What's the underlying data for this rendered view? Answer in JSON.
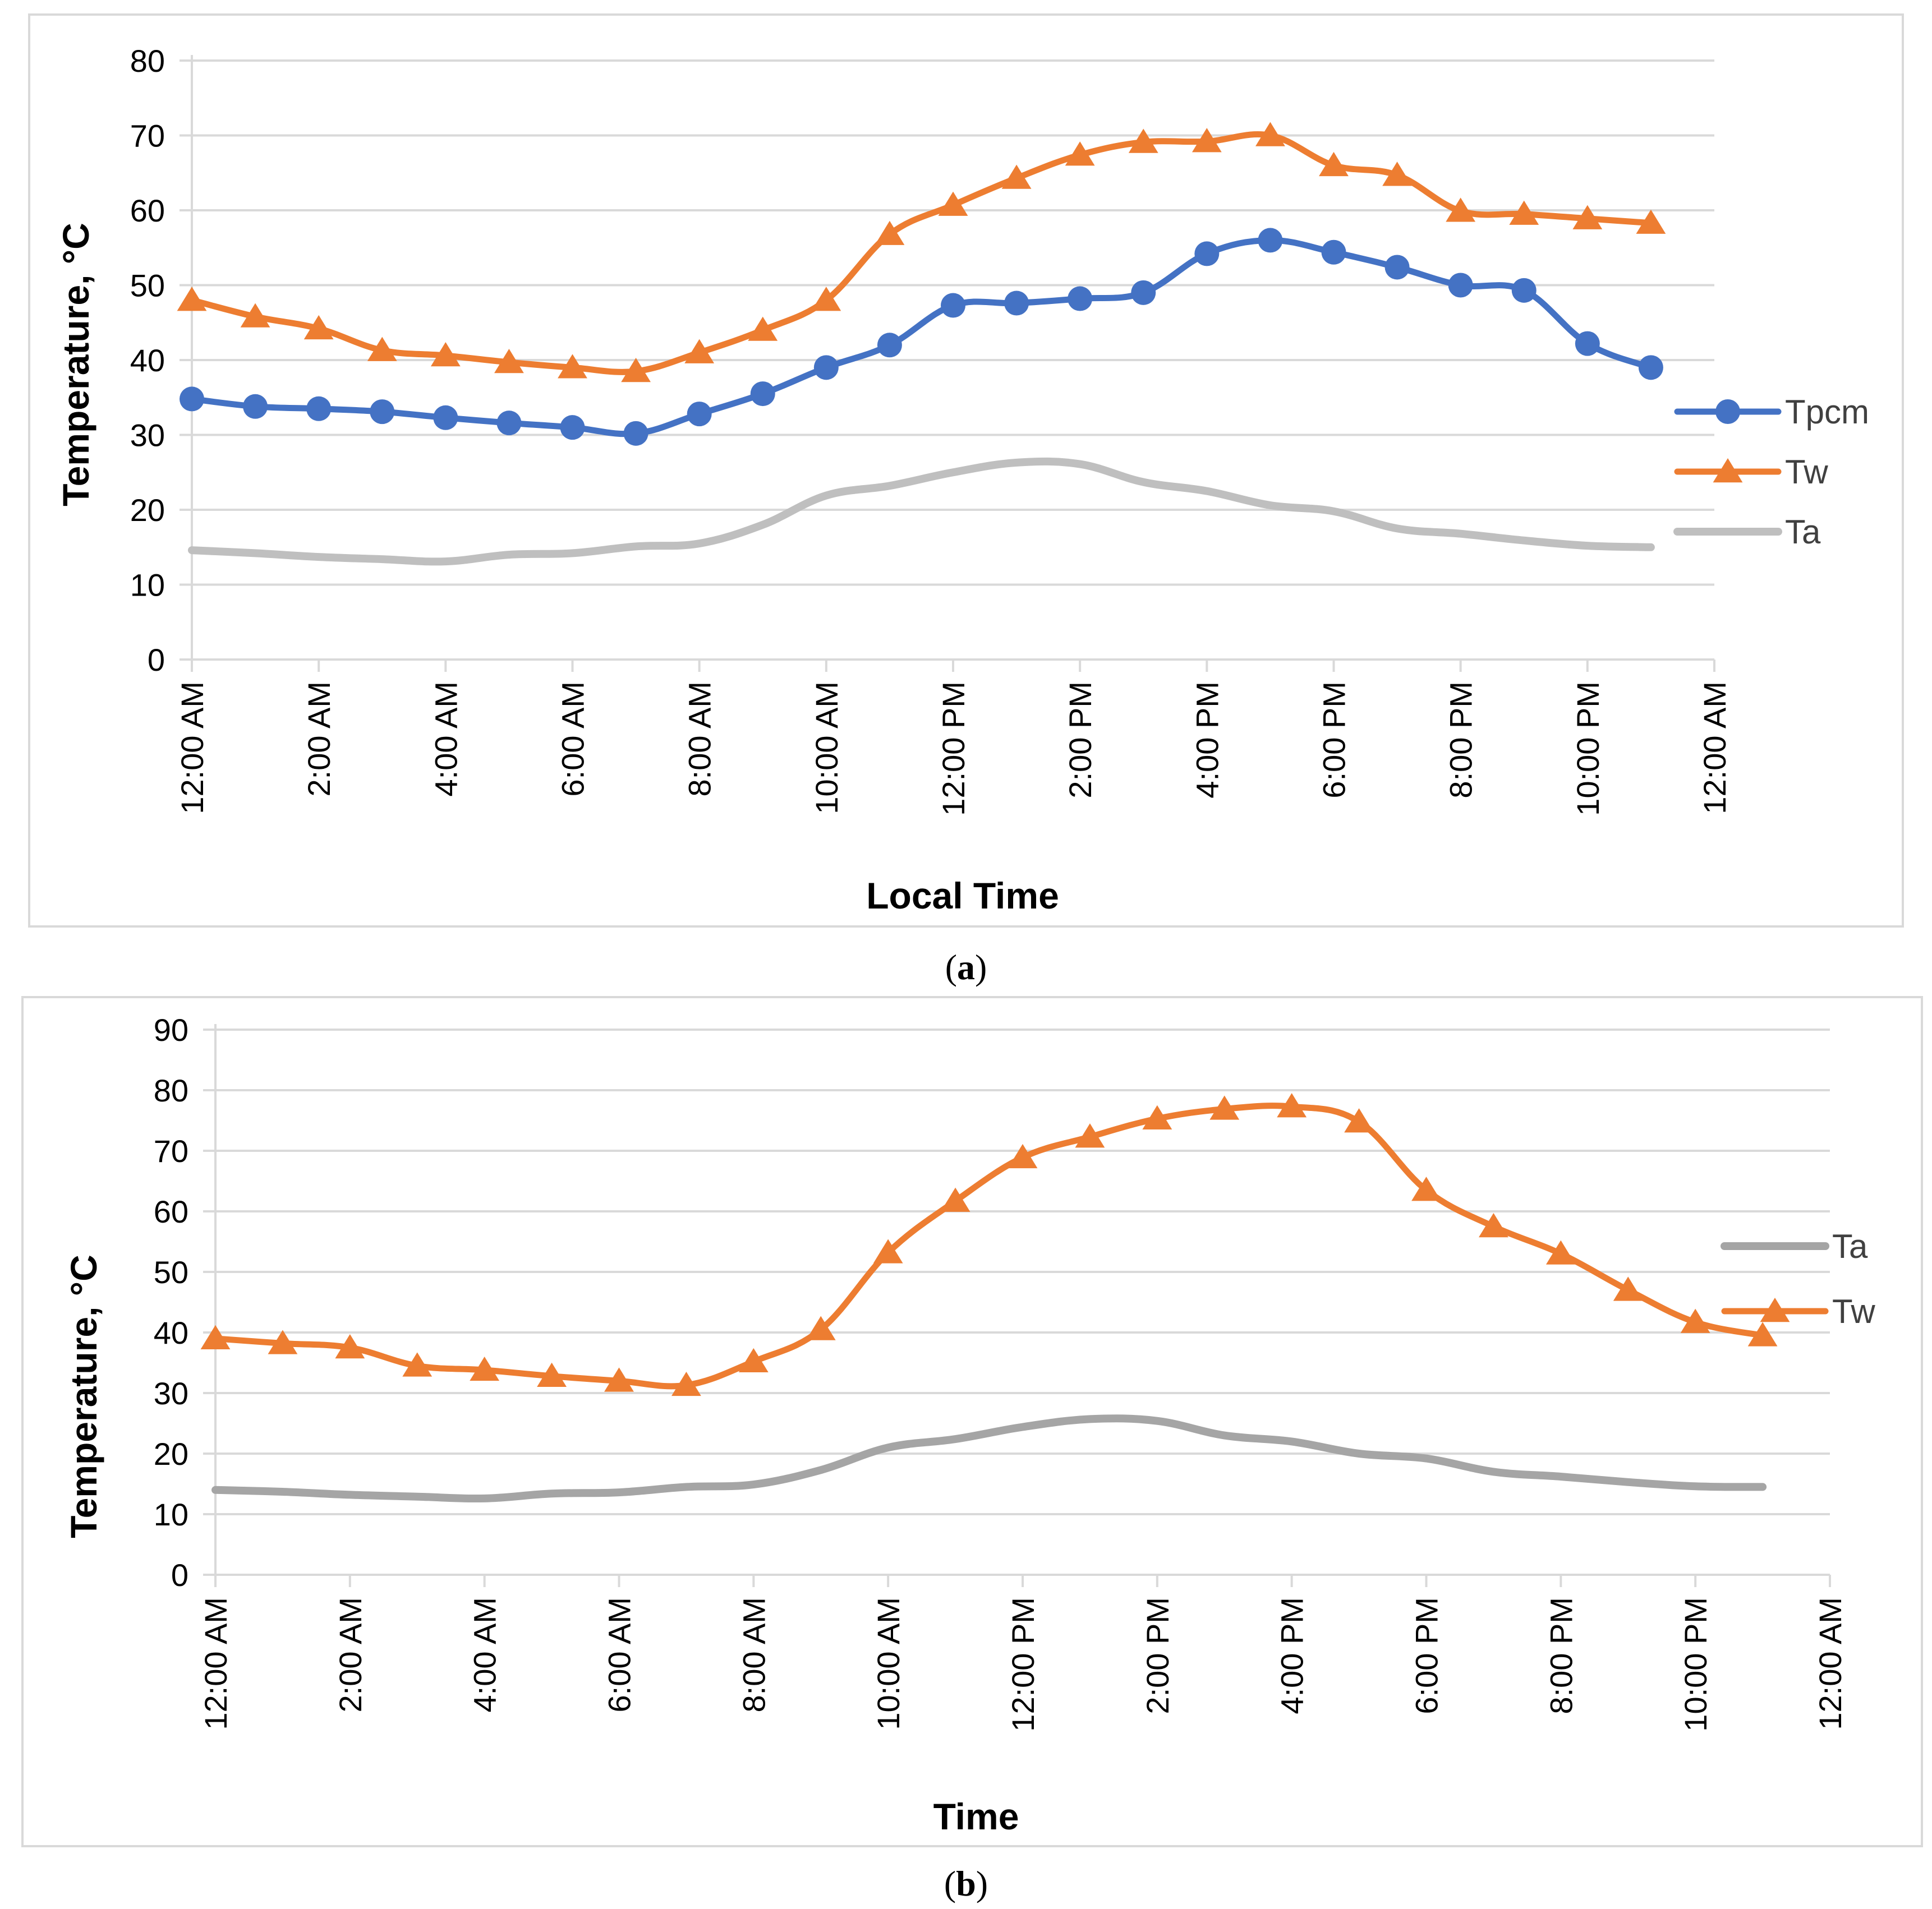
{
  "chart_data": [
    {
      "id": "a",
      "type": "line",
      "caption_letter": "a",
      "xlabel": "Local Time",
      "ylabel": "Temperature, °C",
      "ylim": [
        0,
        80
      ],
      "yticks": [
        0,
        10,
        20,
        30,
        40,
        50,
        60,
        70,
        80
      ],
      "xlim": [
        0,
        24
      ],
      "xticks": [
        {
          "hour": 0,
          "label": "12:00 AM"
        },
        {
          "hour": 2,
          "label": "2:00 AM"
        },
        {
          "hour": 4,
          "label": "4:00 AM"
        },
        {
          "hour": 6,
          "label": "6:00 AM"
        },
        {
          "hour": 8,
          "label": "8:00 AM"
        },
        {
          "hour": 10,
          "label": "10:00 AM"
        },
        {
          "hour": 12,
          "label": "12:00 PM"
        },
        {
          "hour": 14,
          "label": "2:00 PM"
        },
        {
          "hour": 16,
          "label": "4:00 PM"
        },
        {
          "hour": 18,
          "label": "6:00 PM"
        },
        {
          "hour": 20,
          "label": "8:00 PM"
        },
        {
          "hour": 22,
          "label": "10:00 PM"
        },
        {
          "hour": 24,
          "label": "12:00 AM"
        }
      ],
      "grid": true,
      "legend_position": "right",
      "x": [
        0,
        1,
        2,
        3,
        4,
        5,
        6,
        7,
        8,
        9,
        10,
        11,
        12,
        13,
        14,
        15,
        16,
        17,
        18,
        19,
        20,
        21,
        22,
        23
      ],
      "series": [
        {
          "name": "Tpcm",
          "color": "#4472c4",
          "marker": "circle",
          "values": [
            34.8,
            33.8,
            33.5,
            33.1,
            32.3,
            31.6,
            31.0,
            30.2,
            32.8,
            35.5,
            39.0,
            42.0,
            47.3,
            47.6,
            48.2,
            49.0,
            54.2,
            56.0,
            54.4,
            52.4,
            50.0,
            49.3,
            42.2,
            39.0
          ]
        },
        {
          "name": "Tw",
          "color": "#ed7d31",
          "marker": "triangle",
          "values": [
            48.0,
            45.8,
            44.2,
            41.3,
            40.6,
            39.7,
            39.0,
            38.5,
            41.0,
            44.0,
            48.0,
            56.8,
            60.7,
            64.3,
            67.4,
            69.1,
            69.2,
            70.0,
            66.0,
            64.7,
            59.9,
            59.5,
            58.9,
            58.3
          ]
        },
        {
          "name": "Ta",
          "color": "#bfbfbf",
          "marker": "none",
          "values": [
            14.6,
            14.2,
            13.7,
            13.4,
            13.1,
            14.0,
            14.2,
            15.1,
            15.5,
            18.0,
            21.9,
            23.2,
            25.0,
            26.3,
            26.1,
            23.7,
            22.5,
            20.6,
            19.8,
            17.5,
            16.8,
            15.9,
            15.2,
            15.0
          ]
        }
      ]
    },
    {
      "id": "b",
      "type": "line",
      "caption_letter": "b",
      "xlabel": "Time",
      "ylabel": "Temperature, °C",
      "ylim": [
        0,
        90
      ],
      "yticks": [
        0,
        10,
        20,
        30,
        40,
        50,
        60,
        70,
        80,
        90
      ],
      "xlim": [
        0,
        24
      ],
      "xticks": [
        {
          "hour": 0,
          "label": "12:00 AM"
        },
        {
          "hour": 2,
          "label": "2:00 AM"
        },
        {
          "hour": 4,
          "label": "4:00 AM"
        },
        {
          "hour": 6,
          "label": "6:00 AM"
        },
        {
          "hour": 8,
          "label": "8:00 AM"
        },
        {
          "hour": 10,
          "label": "10:00 AM"
        },
        {
          "hour": 12,
          "label": "12:00 PM"
        },
        {
          "hour": 14,
          "label": "2:00 PM"
        },
        {
          "hour": 16,
          "label": "4:00 PM"
        },
        {
          "hour": 18,
          "label": "6:00 PM"
        },
        {
          "hour": 20,
          "label": "8:00 PM"
        },
        {
          "hour": 22,
          "label": "10:00 PM"
        },
        {
          "hour": 24,
          "label": "12:00 AM"
        }
      ],
      "grid": true,
      "legend_position": "right",
      "x": [
        0,
        1,
        2,
        3,
        4,
        5,
        6,
        7,
        8,
        9,
        10,
        11,
        12,
        13,
        14,
        15,
        16,
        17,
        18,
        19,
        20,
        21,
        22,
        23
      ],
      "series": [
        {
          "name": "Ta",
          "color": "#a5a5a5",
          "marker": "none",
          "values": [
            14.0,
            13.7,
            13.2,
            12.9,
            12.6,
            13.4,
            13.6,
            14.5,
            14.9,
            17.3,
            21.0,
            22.4,
            24.4,
            25.7,
            25.4,
            23.0,
            22.0,
            20.0,
            19.2,
            17.0,
            16.2,
            15.3,
            14.6,
            14.5
          ]
        },
        {
          "name": "Tw",
          "color": "#ed7d31",
          "marker": "triangle",
          "values": [
            39.0,
            38.2,
            37.5,
            34.5,
            33.8,
            32.8,
            32.0,
            31.3,
            35.2,
            40.5,
            53.2,
            61.7,
            68.9,
            72.3,
            75.3,
            76.9,
            77.3,
            74.8,
            63.5,
            57.5,
            53.0,
            47.0,
            41.7,
            39.5
          ]
        }
      ]
    }
  ]
}
